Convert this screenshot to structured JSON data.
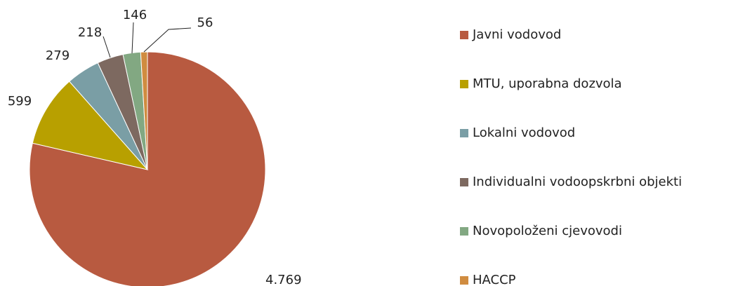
{
  "chart_data": {
    "type": "pie",
    "categories": [
      "Javni vodovod",
      "MTU, uporabna dozvola",
      "Lokalni vodovod",
      "Individualni vodoopskrbni objekti",
      "Novopoloženi cjevovodi",
      "HACCP"
    ],
    "values": [
      4769,
      599,
      279,
      218,
      146,
      56
    ],
    "value_labels": [
      "4.769",
      "599",
      "279",
      "218",
      "146",
      "56"
    ],
    "colors": [
      "#b85a40",
      "#b8a000",
      "#7a9ea5",
      "#7d6960",
      "#82a882",
      "#d08c40"
    ],
    "legend": "right"
  }
}
